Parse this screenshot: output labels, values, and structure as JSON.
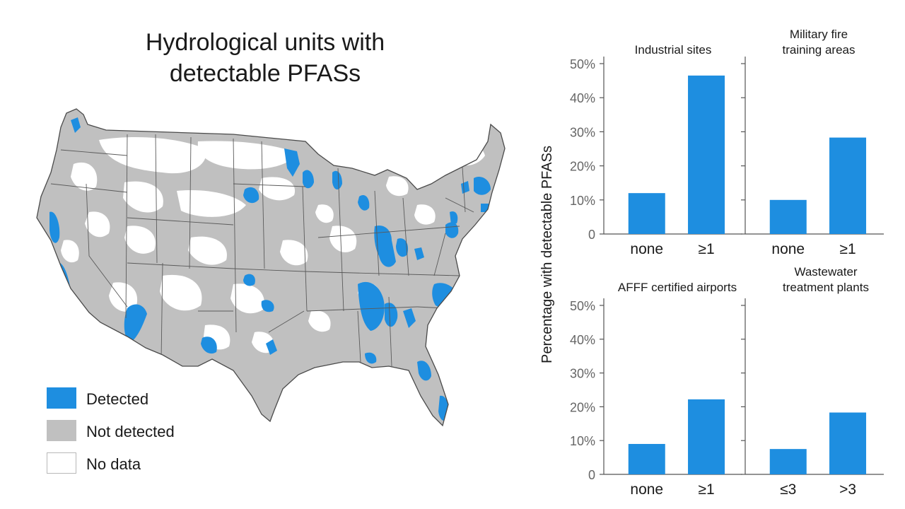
{
  "map": {
    "title_line1": "Hydrological units with",
    "title_line2": "detectable PFASs",
    "legend": [
      {
        "label": "Detected",
        "color": "#1e8ee0"
      },
      {
        "label": "Not detected",
        "color": "#c0c0c0"
      },
      {
        "label": "No data",
        "color": "#ffffff"
      }
    ]
  },
  "chart_data": [
    {
      "type": "bar",
      "title": "Industrial sites",
      "categories": [
        "none",
        "≥1"
      ],
      "values": [
        12,
        46.5
      ],
      "ylabel": "Percentage with detectable PFASs",
      "ylim": [
        0,
        50
      ],
      "yticks": [
        "0",
        "10%",
        "20%",
        "30%",
        "40%",
        "50%"
      ],
      "color": "#1e8ee0"
    },
    {
      "type": "bar",
      "title": "Military fire\ntraining areas",
      "categories": [
        "none",
        "≥1"
      ],
      "values": [
        10,
        28.3
      ],
      "ylim": [
        0,
        50
      ],
      "color": "#1e8ee0"
    },
    {
      "type": "bar",
      "title": "AFFF certified airports",
      "categories": [
        "none",
        "≥1"
      ],
      "values": [
        9,
        22.2
      ],
      "ylabel": "Percentage with detectable PFASs",
      "ylim": [
        0,
        50
      ],
      "yticks": [
        "0",
        "10%",
        "20%",
        "30%",
        "40%",
        "50%"
      ],
      "color": "#1e8ee0"
    },
    {
      "type": "bar",
      "title": "Wastewater\ntreatment plants",
      "categories": [
        "≤3",
        ">3"
      ],
      "values": [
        7.5,
        18.3
      ],
      "ylim": [
        0,
        50
      ],
      "color": "#1e8ee0"
    }
  ]
}
